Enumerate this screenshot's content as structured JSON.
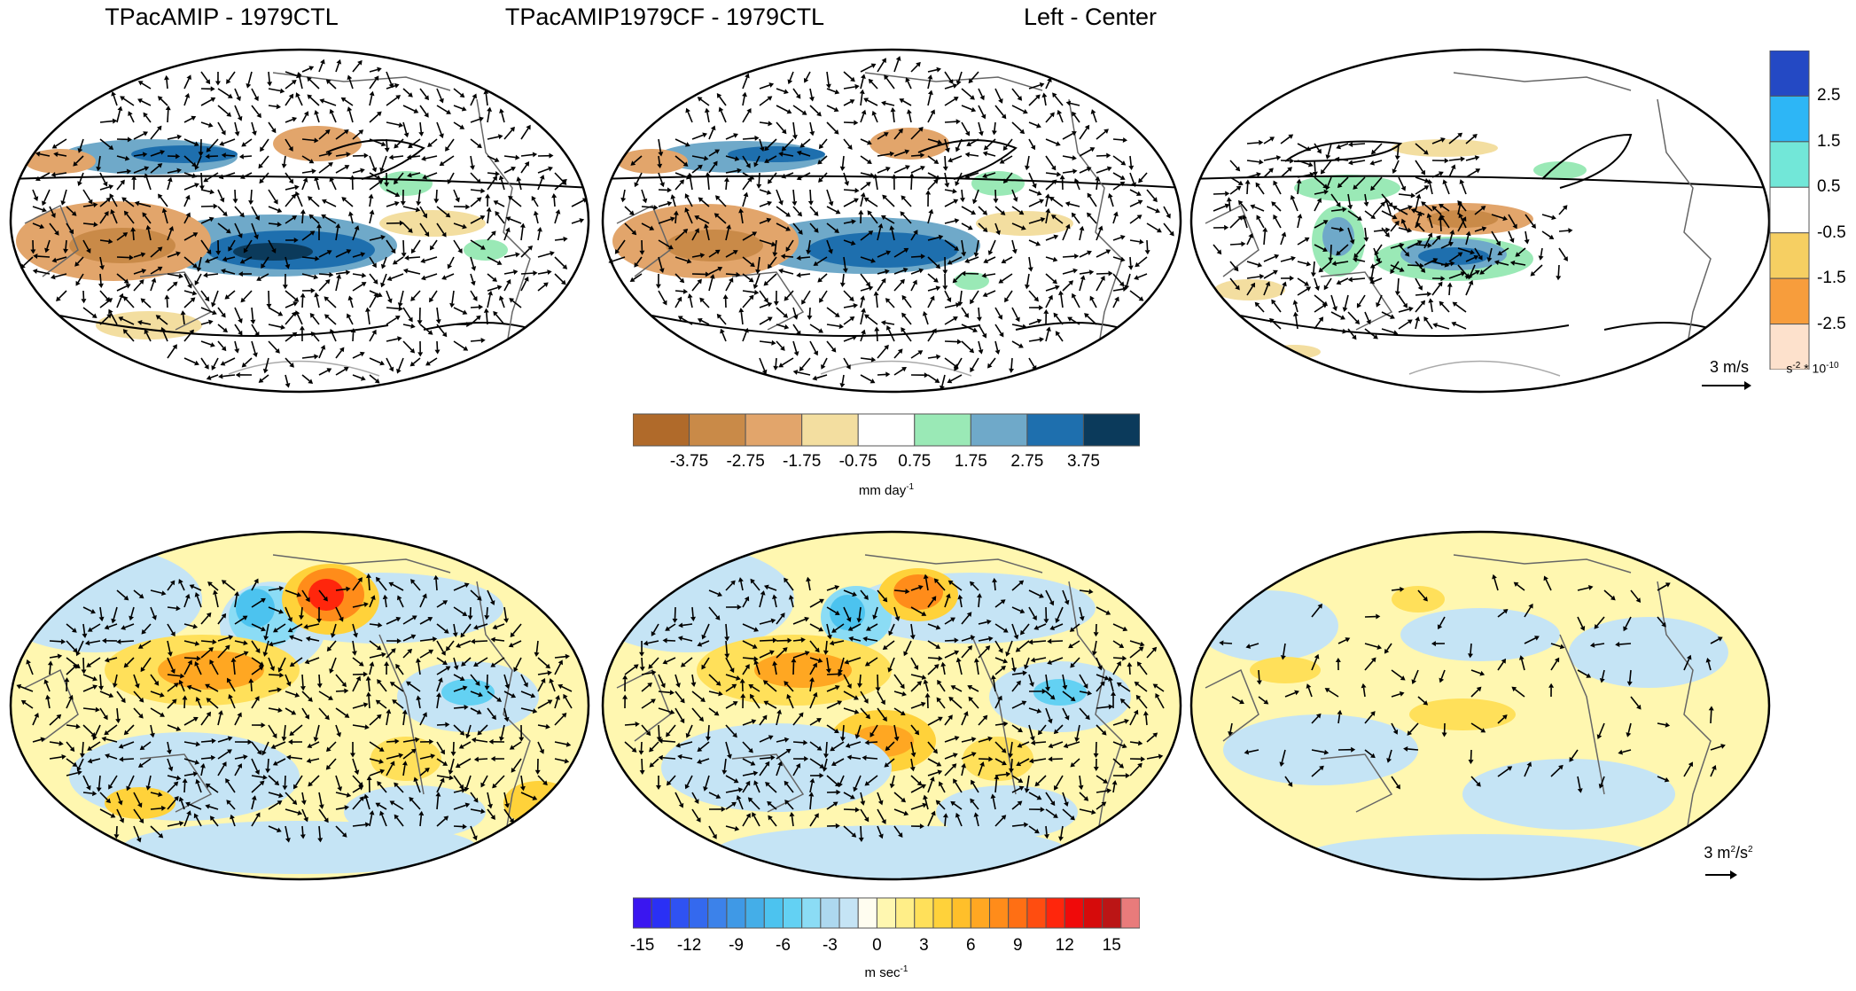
{
  "panels": {
    "top_titles": [
      "TPacAMIP - 1979CTL",
      "TPacAMIP1979CF - 1979CTL",
      "Left - Center"
    ]
  },
  "icons": [
    "map-ellipse",
    "wind-vector-arrow"
  ],
  "colors": {
    "precip": [
      "#b06a2a",
      "#c98a48",
      "#e2a56b",
      "#f3dea0",
      "#ffffff",
      "#9ae9b6",
      "#6fa9c9",
      "#1e6fae",
      "#0b3a5b"
    ],
    "divergence": [
      "#2449c4",
      "#2db6f6",
      "#72e7d8",
      "#ffffff",
      "#f6cf62",
      "#f79d3c",
      "#fde1cc"
    ],
    "streamfunction": [
      "#3a16f0",
      "#2a30f5",
      "#2f52f2",
      "#3469ee",
      "#3c82ea",
      "#3f99e6",
      "#44aee8",
      "#4cc3ef",
      "#63d1f3",
      "#8bdcf5",
      "#add8ef",
      "#c5e4f5",
      "#fffdf0",
      "#fff7b0",
      "#ffee88",
      "#ffe05a",
      "#ffd23a",
      "#ffbf2a",
      "#ffa722",
      "#ff8c1a",
      "#ff6f14",
      "#ff4d10",
      "#ff260c",
      "#f00a0a",
      "#d60b0b",
      "#bb1515",
      "#e97b7b"
    ]
  },
  "legend_precip": {
    "ticks": [
      "-3.75",
      "-2.75",
      "-1.75",
      "-0.75",
      "0.75",
      "1.75",
      "2.75",
      "3.75"
    ],
    "unit_base": "mm day",
    "unit_exp": "-1"
  },
  "legend_divergence": {
    "ticks": [
      "2.5",
      "1.5",
      "0.5",
      "-0.5",
      "-1.5",
      "-2.5"
    ],
    "unit_base1": "s",
    "unit_exp1": "-2",
    "unit_mid": " * 10",
    "unit_exp2": "-10"
  },
  "legend_streamfunction": {
    "ticks": [
      "-15",
      "-12",
      "-9",
      "-6",
      "-3",
      "0",
      "3",
      "6",
      "9",
      "12",
      "15"
    ],
    "unit_base": "m sec",
    "unit_exp": "-1"
  },
  "ref_top": {
    "label": "3 m/s"
  },
  "ref_bottom": {
    "label_base": "3 m",
    "label_exp1": "2",
    "label_mid": "/s",
    "label_exp2": "2"
  }
}
